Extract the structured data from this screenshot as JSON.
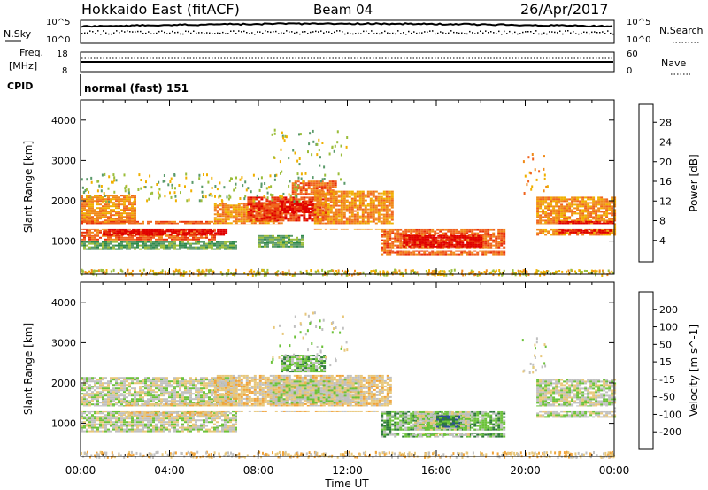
{
  "header": {
    "station": "Hokkaido East (fitACF)",
    "beam": "Beam 04",
    "date": "26/Apr/2017"
  },
  "top_panels": {
    "nsky_label": "N.Sky",
    "noise_ticks": [
      "10^5",
      "10^0"
    ],
    "nsearch_label": "N.Search",
    "freq_label": "Freq.",
    "freq_unit": "[MHz]",
    "freq_ticks": [
      "18",
      "8"
    ],
    "nave_label": "Nave",
    "nave_ticks": [
      "60",
      "0"
    ],
    "cpid_label": "CPID",
    "cpid_value": "normal (fast) 151"
  },
  "chart_data": [
    {
      "type": "heatmap",
      "panel": "power",
      "ylabel": "Slant Range [km]",
      "xlabel": "Time UT",
      "x_ticks": [
        "00:00",
        "04:00",
        "08:00",
        "12:00",
        "16:00",
        "20:00",
        "00:00"
      ],
      "x_range_hours": [
        0,
        24
      ],
      "y_ticks": [
        1000,
        2000,
        3000,
        4000
      ],
      "ylim": [
        180,
        4500
      ],
      "colorbar": {
        "label": "Power [dB]",
        "ticks": [
          "4",
          "8",
          "12",
          "16",
          "20",
          "24",
          "28"
        ],
        "colors": [
          "#1428d8",
          "#2f5fae",
          "#2f8a4c",
          "#5a9a6a",
          "#9bbd3a",
          "#f0b000",
          "#f08a1a",
          "#f0641e",
          "#e8320a",
          "#e00000"
        ]
      },
      "regions": [
        {
          "t": [
            0.0,
            2.5
          ],
          "r": [
            1450,
            2150
          ],
          "c": 6
        },
        {
          "t": [
            0.0,
            6.0
          ],
          "r": [
            1050,
            1500
          ],
          "c": 7
        },
        {
          "t": [
            1.0,
            6.5
          ],
          "r": [
            1150,
            1400
          ],
          "c": 9
        },
        {
          "t": [
            0.0,
            7.0
          ],
          "r": [
            800,
            1000
          ],
          "c": 3
        },
        {
          "t": [
            6.0,
            9.0
          ],
          "r": [
            1350,
            1950
          ],
          "c": 6
        },
        {
          "t": [
            7.5,
            11.0
          ],
          "r": [
            1500,
            2100
          ],
          "c": 8
        },
        {
          "t": [
            9.0,
            10.5
          ],
          "r": [
            1700,
            2000
          ],
          "c": 9
        },
        {
          "t": [
            9.5,
            11.5
          ],
          "r": [
            2150,
            2500
          ],
          "c": 7
        },
        {
          "t": [
            10.5,
            14.0
          ],
          "r": [
            1300,
            2250
          ],
          "c": 6
        },
        {
          "t": [
            8.0,
            10.0
          ],
          "r": [
            850,
            1150
          ],
          "c": 3
        },
        {
          "t": [
            13.5,
            19.0
          ],
          "r": [
            650,
            1350
          ],
          "c": 7
        },
        {
          "t": [
            14.5,
            18.0
          ],
          "r": [
            850,
            1150
          ],
          "c": 9
        },
        {
          "t": [
            20.5,
            24.0
          ],
          "r": [
            1150,
            2100
          ],
          "c": 6
        },
        {
          "t": [
            21.5,
            24.0
          ],
          "r": [
            1200,
            1500
          ],
          "c": 9
        }
      ],
      "white_bands": [
        {
          "t": [
            0,
            24
          ],
          "r": [
            1300,
            1420
          ]
        },
        {
          "t": [
            14,
            19.2
          ],
          "r": [
            760,
            820
          ]
        },
        {
          "t": [
            14,
            19.2
          ],
          "r": [
            590,
            640
          ]
        }
      ],
      "sparse": [
        {
          "t": [
            8.5,
            12.0
          ],
          "r": [
            2400,
            3800
          ],
          "c": 4
        },
        {
          "t": [
            19.8,
            21.0
          ],
          "r": [
            2200,
            3200
          ],
          "c": 6
        },
        {
          "t": [
            0,
            24
          ],
          "r": [
            180,
            320
          ],
          "c": 5
        },
        {
          "t": [
            0,
            10
          ],
          "r": [
            2000,
            2700
          ],
          "c": 4
        }
      ]
    },
    {
      "type": "heatmap",
      "panel": "velocity",
      "ylabel": "Slant Range [km]",
      "xlabel": "Time UT",
      "x_ticks": [
        "00:00",
        "04:00",
        "08:00",
        "12:00",
        "16:00",
        "20:00",
        "00:00"
      ],
      "x_range_hours": [
        0,
        24
      ],
      "y_ticks": [
        1000,
        2000,
        3000,
        4000
      ],
      "ylim": [
        180,
        4500
      ],
      "colorbar": {
        "label": "Velocity [m s^-1]",
        "ticks": [
          "200",
          "100",
          "50",
          "15",
          "-15",
          "-50",
          "-100",
          "-200"
        ],
        "colors": [
          "#1a2ab5",
          "#2e4e9a",
          "#2f7a3a",
          "#6cc23a",
          "#c0c0c0",
          "#e8c77a",
          "#f0a33a",
          "#f07a1a",
          "#e83a0a"
        ]
      },
      "regions": [
        {
          "t": [
            0.0,
            7.0
          ],
          "r": [
            1050,
            2150
          ],
          "c": 4
        },
        {
          "t": [
            2.0,
            6.5
          ],
          "r": [
            1150,
            1500
          ],
          "c": 5
        },
        {
          "t": [
            6.0,
            14.0
          ],
          "r": [
            1300,
            2200
          ],
          "c": 5
        },
        {
          "t": [
            8.5,
            12.5
          ],
          "r": [
            1500,
            2100
          ],
          "c": 4
        },
        {
          "t": [
            9.0,
            11.0
          ],
          "r": [
            2300,
            2700
          ],
          "c": 3
        },
        {
          "t": [
            0.0,
            7.0
          ],
          "r": [
            800,
            1000
          ],
          "c": 4
        },
        {
          "t": [
            13.5,
            19.0
          ],
          "r": [
            650,
            1350
          ],
          "c": 3
        },
        {
          "t": [
            15.0,
            17.5
          ],
          "r": [
            700,
            1300
          ],
          "c": 4
        },
        {
          "t": [
            16.0,
            17.0
          ],
          "r": [
            900,
            1200
          ],
          "c": 2
        },
        {
          "t": [
            20.5,
            24.0
          ],
          "r": [
            1150,
            2100
          ],
          "c": 4
        }
      ],
      "white_bands": [
        {
          "t": [
            0,
            24
          ],
          "r": [
            1300,
            1420
          ]
        },
        {
          "t": [
            14,
            19.2
          ],
          "r": [
            760,
            820
          ]
        }
      ],
      "sparse": [
        {
          "t": [
            8.5,
            12.0
          ],
          "r": [
            2400,
            3800
          ],
          "c": 4
        },
        {
          "t": [
            19.8,
            21.0
          ],
          "r": [
            2200,
            3200
          ],
          "c": 4
        },
        {
          "t": [
            0,
            24
          ],
          "r": [
            180,
            320
          ],
          "c": 5
        }
      ]
    }
  ]
}
